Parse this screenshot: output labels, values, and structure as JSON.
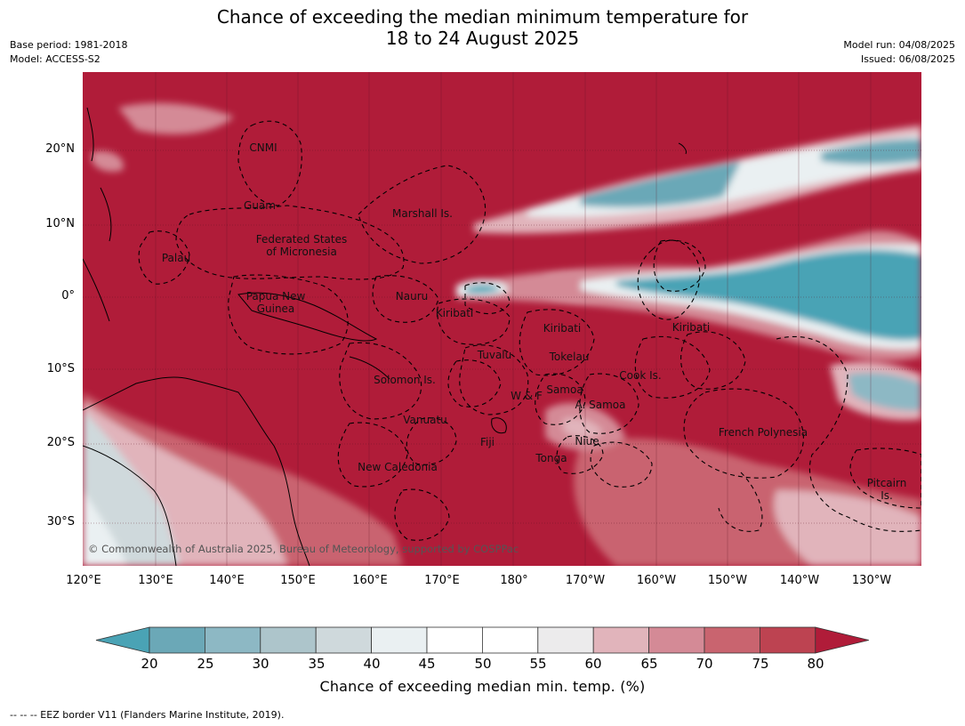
{
  "title_line1": "Chance of exceeding the median minimum temperature for",
  "title_line2": "18 to 24 August 2025",
  "meta_left": [
    "Base period: 1981-2018",
    "Model: ACCESS-S2"
  ],
  "meta_right": [
    "Model run: 04/08/2025",
    "Issued: 06/08/2025"
  ],
  "y_labels": [
    "20°N",
    "10°N",
    "0°",
    "10°S",
    "20°S",
    "30°S"
  ],
  "x_labels": [
    "120°E",
    "130°E",
    "140°E",
    "150°E",
    "160°E",
    "170°E",
    "180°",
    "170°W",
    "160°W",
    "150°W",
    "140°W",
    "130°W"
  ],
  "regions": {
    "cnmi": "CNMI",
    "guam": "Guam",
    "marshall": "Marshall Is.",
    "fsm": "Federated States\nof Micronesia",
    "palau": "Palau",
    "png": "Papua New\nGuinea",
    "nauru": "Nauru",
    "kiribati1": "Kiribati",
    "kiribati2": "Kiribati",
    "kiribati3": "Kiribati",
    "tuvalu": "Tuvalu",
    "tokelau": "Tokelau",
    "cook": "Cook Is.",
    "solomon": "Solomon Is.",
    "wf": "W & F",
    "samoa": "Samoa",
    "asamoa": "A. Samoa",
    "vanuatu": "Vanuatu",
    "fiji": "Fiji",
    "niue": "Niue",
    "tonga": "Tonga",
    "frpoly": "French Polynesia",
    "newcal": "New Caledonia",
    "pitcairn": "Pitcairn\nIs."
  },
  "copyright": "© Commonwealth of Australia 2025, Bureau of Meteorology, supported by COSPPac",
  "colorbar": {
    "ticks": [
      "20",
      "25",
      "30",
      "35",
      "40",
      "45",
      "50",
      "55",
      "60",
      "65",
      "70",
      "75",
      "80"
    ],
    "label": "Chance of exceeding median min. temp. (%)",
    "colors": [
      "#4aa3b5",
      "#6ba8b7",
      "#8db8c4",
      "#adc5cb",
      "#cfd9dc",
      "#eaf0f2",
      "#ffffff",
      "#ffffff",
      "#ecebec",
      "#e1b4bb",
      "#d48a96",
      "#c9646f",
      "#bd4351",
      "#b01c39"
    ]
  },
  "footnote": "--  --  -- EEZ border V11 (Flanders Marine Institute, 2019)."
}
